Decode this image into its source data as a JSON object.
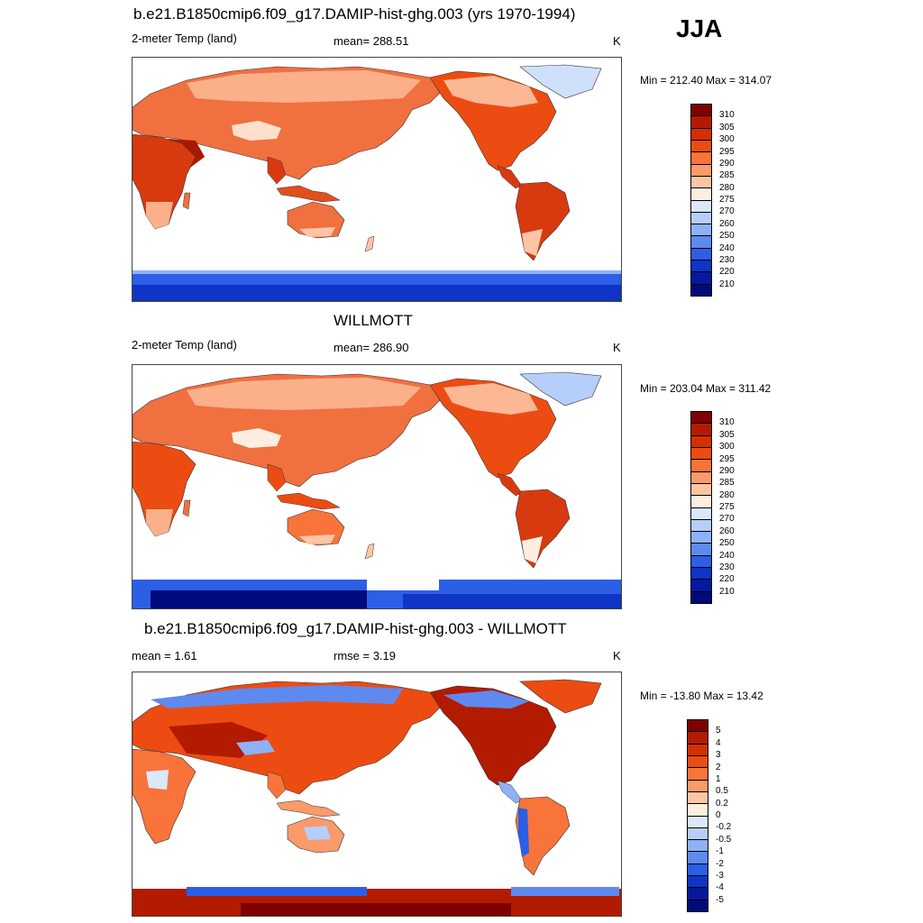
{
  "season": "JJA",
  "panels": [
    {
      "title": "b.e21.B1850cmip6.f09_g17.DAMIP-hist-ghg.003 (yrs 1970-1994)",
      "left_label": "2-meter Temp (land)",
      "center_label": "mean= 288.51",
      "units": "K",
      "minmax": "Min = 212.40 Max = 314.07",
      "colorbar": {
        "labels": [
          "310",
          "305",
          "300",
          "295",
          "290",
          "285",
          "280",
          "275",
          "270",
          "260",
          "250",
          "240",
          "230",
          "220",
          "210"
        ],
        "colors": [
          "#7f0000",
          "#b31b00",
          "#d42f00",
          "#ec4c12",
          "#f8743a",
          "#fb9a6a",
          "#fdc5a4",
          "#fdeee0",
          "#dbe8fb",
          "#b6cffa",
          "#8fb1f7",
          "#5e8af0",
          "#2c5ee6",
          "#0f34c7",
          "#06189e",
          "#000a7a"
        ]
      },
      "antarctic_note": "Antarctica cold (blue)"
    },
    {
      "title": "WILLMOTT",
      "left_label": "2-meter Temp (land)",
      "center_label": "mean= 286.90",
      "units": "K",
      "minmax": "Min = 203.04 Max = 311.42",
      "colorbar": {
        "labels": [
          "310",
          "305",
          "300",
          "295",
          "290",
          "285",
          "280",
          "275",
          "270",
          "260",
          "250",
          "240",
          "230",
          "220",
          "210"
        ],
        "colors": [
          "#7f0000",
          "#b31b00",
          "#d42f00",
          "#ec4c12",
          "#f8743a",
          "#fb9a6a",
          "#fdc5a4",
          "#fdeee0",
          "#dbe8fb",
          "#b6cffa",
          "#8fb1f7",
          "#5e8af0",
          "#2c5ee6",
          "#0f34c7",
          "#06189e",
          "#000a7a"
        ]
      }
    },
    {
      "title": "b.e21.B1850cmip6.f09_g17.DAMIP-hist-ghg.003 - WILLMOTT",
      "left_label": "mean =   1.61",
      "center_label": "rmse =   3.19",
      "units": "K",
      "minmax": "Min = -13.80 Max =  13.42",
      "colorbar": {
        "labels": [
          "5",
          "4",
          "3",
          "2",
          "1",
          "0.5",
          "0.2",
          "0",
          "-0.2",
          "-0.5",
          "-1",
          "-2",
          "-3",
          "-4",
          "-5"
        ],
        "colors": [
          "#7f0000",
          "#b31b00",
          "#d42f00",
          "#ec4c12",
          "#f8743a",
          "#fb9a6a",
          "#fdc5a4",
          "#fdeee0",
          "#dbe8fb",
          "#b6cffa",
          "#8fb1f7",
          "#5e8af0",
          "#2c5ee6",
          "#0f34c7",
          "#06189e",
          "#000a7a"
        ]
      }
    }
  ]
}
